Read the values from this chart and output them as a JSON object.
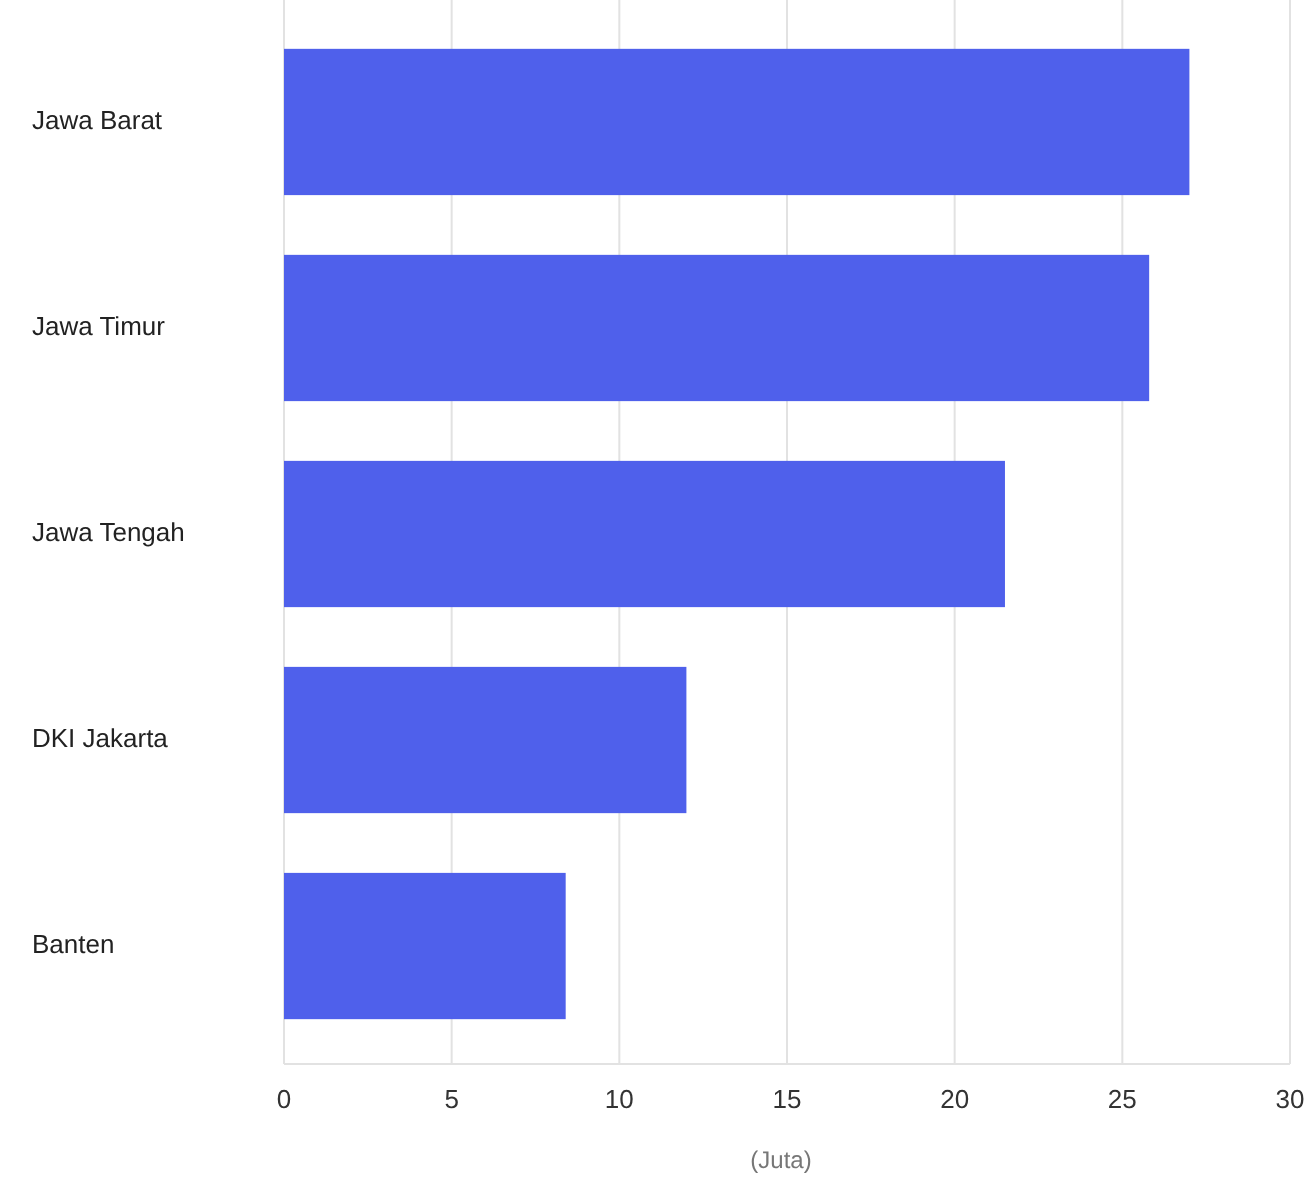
{
  "chart_data": {
    "type": "bar",
    "orientation": "horizontal",
    "xlabel": "(Juta)",
    "categories": [
      "Jawa Barat",
      "Jawa Timur",
      "Jawa Tengah",
      "DKI Jakarta",
      "Banten"
    ],
    "values": [
      27,
      25.8,
      21.5,
      12,
      8.4
    ],
    "color": "#4f60eb",
    "xlim": [
      0,
      30
    ],
    "xticks": [
      0,
      5,
      10,
      15,
      20,
      25,
      30
    ],
    "grid": "x"
  }
}
